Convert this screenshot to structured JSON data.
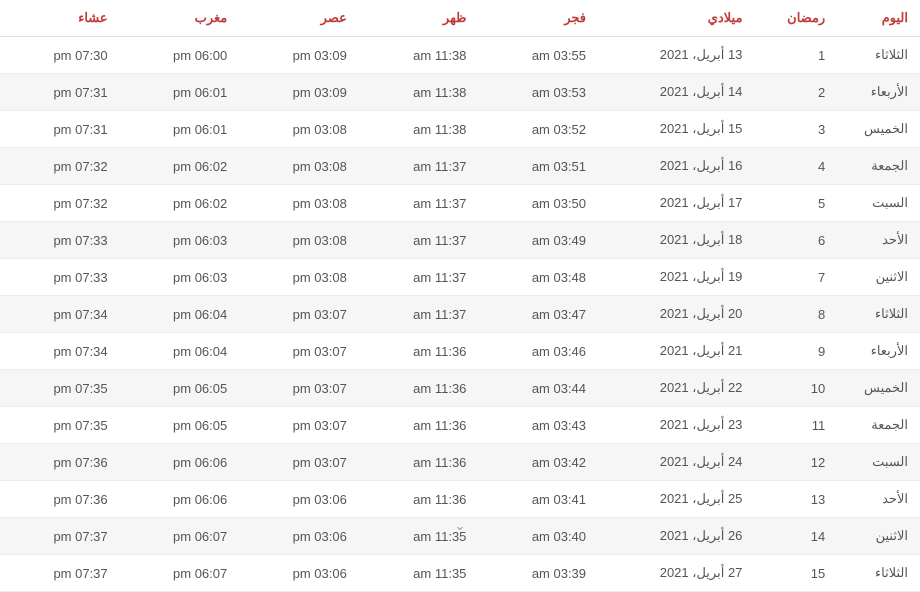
{
  "table": {
    "header_color": "#c23b3b",
    "row_text_color": "#555555",
    "border_color": "#ececec",
    "alt_row_bg": "#f6f6f6",
    "bg": "#ffffff",
    "font_size": 13,
    "columns": [
      {
        "key": "day",
        "label": "اليوم"
      },
      {
        "key": "ramadan",
        "label": "رمضان"
      },
      {
        "key": "greg",
        "label": "ميلادي"
      },
      {
        "key": "fajr",
        "label": "فجر"
      },
      {
        "key": "dhuhr",
        "label": "ظهر"
      },
      {
        "key": "asr",
        "label": "عصر"
      },
      {
        "key": "maghrib",
        "label": "مغرب"
      },
      {
        "key": "isha",
        "label": "عشاء"
      }
    ],
    "rows": [
      {
        "day": "الثلاثاء",
        "ramadan": "1",
        "greg": "13 أبريل، 2021",
        "fajr": "am 03:55",
        "dhuhr": "am 11:38",
        "asr": "pm 03:09",
        "maghrib": "pm 06:00",
        "isha": "pm 07:30"
      },
      {
        "day": "الأربعاء",
        "ramadan": "2",
        "greg": "14 أبريل، 2021",
        "fajr": "am 03:53",
        "dhuhr": "am 11:38",
        "asr": "pm 03:09",
        "maghrib": "pm 06:01",
        "isha": "pm 07:31"
      },
      {
        "day": "الخميس",
        "ramadan": "3",
        "greg": "15 أبريل، 2021",
        "fajr": "am 03:52",
        "dhuhr": "am 11:38",
        "asr": "pm 03:08",
        "maghrib": "pm 06:01",
        "isha": "pm 07:31"
      },
      {
        "day": "الجمعة",
        "ramadan": "4",
        "greg": "16 أبريل، 2021",
        "fajr": "am 03:51",
        "dhuhr": "am 11:37",
        "asr": "pm 03:08",
        "maghrib": "pm 06:02",
        "isha": "pm 07:32"
      },
      {
        "day": "السبت",
        "ramadan": "5",
        "greg": "17 أبريل، 2021",
        "fajr": "am 03:50",
        "dhuhr": "am 11:37",
        "asr": "pm 03:08",
        "maghrib": "pm 06:02",
        "isha": "pm 07:32"
      },
      {
        "day": "الأحد",
        "ramadan": "6",
        "greg": "18 أبريل، 2021",
        "fajr": "am 03:49",
        "dhuhr": "am 11:37",
        "asr": "pm 03:08",
        "maghrib": "pm 06:03",
        "isha": "pm 07:33"
      },
      {
        "day": "الاثنين",
        "ramadan": "7",
        "greg": "19 أبريل، 2021",
        "fajr": "am 03:48",
        "dhuhr": "am 11:37",
        "asr": "pm 03:08",
        "maghrib": "pm 06:03",
        "isha": "pm 07:33"
      },
      {
        "day": "الثلاثاء",
        "ramadan": "8",
        "greg": "20 أبريل، 2021",
        "fajr": "am 03:47",
        "dhuhr": "am 11:37",
        "asr": "pm 03:07",
        "maghrib": "pm 06:04",
        "isha": "pm 07:34"
      },
      {
        "day": "الأربعاء",
        "ramadan": "9",
        "greg": "21 أبريل، 2021",
        "fajr": "am 03:46",
        "dhuhr": "am 11:36",
        "asr": "pm 03:07",
        "maghrib": "pm 06:04",
        "isha": "pm 07:34"
      },
      {
        "day": "الخميس",
        "ramadan": "10",
        "greg": "22 أبريل، 2021",
        "fajr": "am 03:44",
        "dhuhr": "am 11:36",
        "asr": "pm 03:07",
        "maghrib": "pm 06:05",
        "isha": "pm 07:35"
      },
      {
        "day": "الجمعة",
        "ramadan": "11",
        "greg": "23 أبريل، 2021",
        "fajr": "am 03:43",
        "dhuhr": "am 11:36",
        "asr": "pm 03:07",
        "maghrib": "pm 06:05",
        "isha": "pm 07:35"
      },
      {
        "day": "السبت",
        "ramadan": "12",
        "greg": "24 أبريل، 2021",
        "fajr": "am 03:42",
        "dhuhr": "am 11:36",
        "asr": "pm 03:07",
        "maghrib": "pm 06:06",
        "isha": "pm 07:36"
      },
      {
        "day": "الأحد",
        "ramadan": "13",
        "greg": "25 أبريل، 2021",
        "fajr": "am 03:41",
        "dhuhr": "am 11:36",
        "asr": "pm 03:06",
        "maghrib": "pm 06:06",
        "isha": "pm 07:36"
      },
      {
        "day": "الاثنين",
        "ramadan": "14",
        "greg": "26 أبريل، 2021",
        "fajr": "am 03:40",
        "dhuhr": "am 11:35",
        "asr": "pm 03:06",
        "maghrib": "pm 06:07",
        "isha": "pm 07:37"
      },
      {
        "day": "الثلاثاء",
        "ramadan": "15",
        "greg": "27 أبريل، 2021",
        "fajr": "am 03:39",
        "dhuhr": "am 11:35",
        "asr": "pm 03:06",
        "maghrib": "pm 06:07",
        "isha": "pm 07:37"
      }
    ]
  },
  "chevron_glyph": "⌄"
}
